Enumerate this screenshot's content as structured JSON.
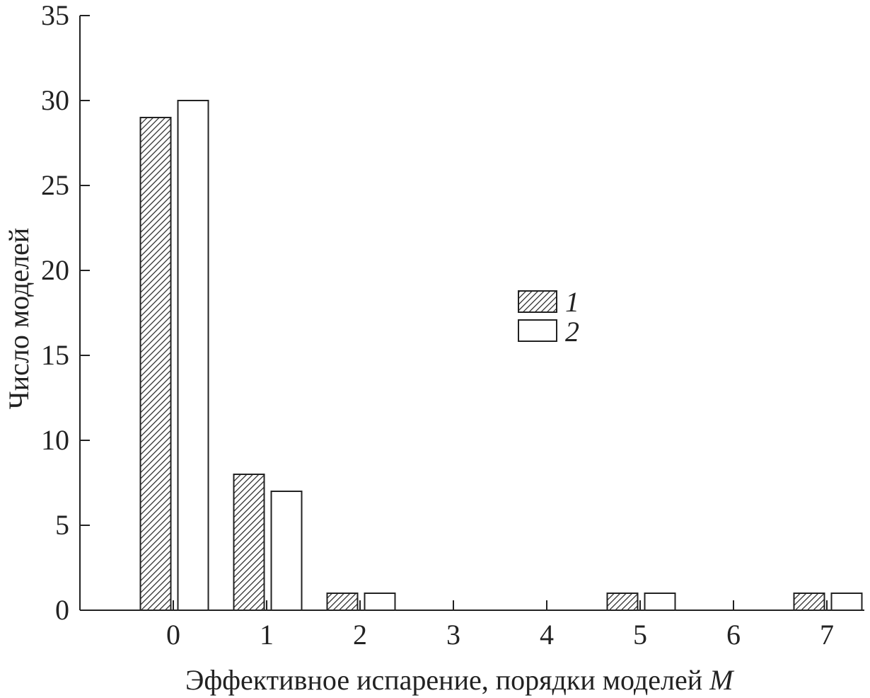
{
  "chart_data": {
    "type": "bar",
    "xlabel": "Эффективное испарение, порядки моделей",
    "xlabel_symbol": "M",
    "ylabel": "Число моделей",
    "categories": [
      "0",
      "1",
      "2",
      "3",
      "4",
      "5",
      "6",
      "7"
    ],
    "x_ticks": [
      "0",
      "1",
      "2",
      "3",
      "4",
      "5",
      "6",
      "7"
    ],
    "y_ticks": [
      "0",
      "5",
      "10",
      "15",
      "20",
      "25",
      "30",
      "35"
    ],
    "ylim": [
      0,
      35
    ],
    "grid": false,
    "legend_position": "center-right",
    "series": [
      {
        "name": "1",
        "pattern": "hatched",
        "values": [
          29,
          8,
          1,
          0,
          0,
          1,
          0,
          1
        ]
      },
      {
        "name": "2",
        "pattern": "open",
        "values": [
          30,
          7,
          1,
          0,
          0,
          1,
          0,
          1
        ]
      }
    ],
    "colors": {
      "axis": "#222222",
      "bar_edge": "#222222",
      "hatch": "#222222",
      "open_fill": "#ffffff"
    }
  }
}
